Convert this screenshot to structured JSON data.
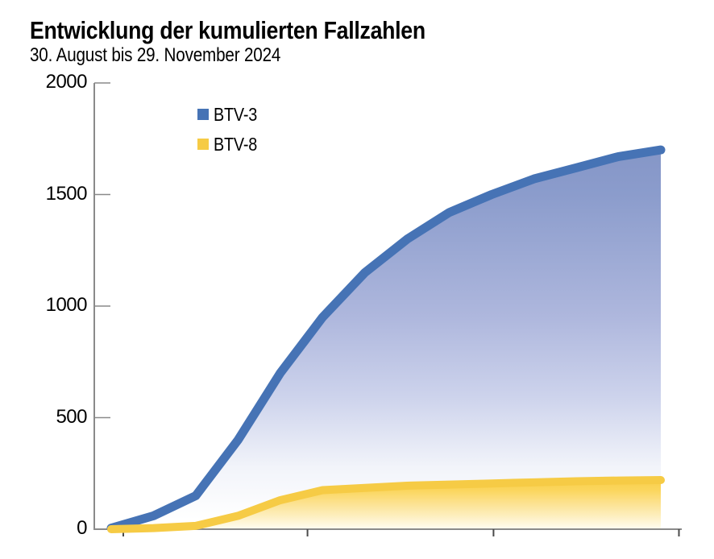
{
  "header": {
    "title": "Entwicklung der kumulierten Fallzahlen",
    "subtitle": "30. August bis 29. November 2024"
  },
  "legend": {
    "items": [
      {
        "label": "BTV-3",
        "color": "#4673b5"
      },
      {
        "label": "BTV-8",
        "color": "#f6cb45"
      }
    ]
  },
  "colors": {
    "btv3_line": "#4673b5",
    "btv3_fill_top": "#8b9ccc",
    "btv8_line": "#f6cb45",
    "btv8_fill_top": "#f8cd47",
    "axis": "#8a8a8a",
    "tick": "#4a4a4a",
    "text": "#000000"
  },
  "chart_data": {
    "type": "area",
    "title": "Entwicklung der kumulierten Fallzahlen",
    "subtitle": "30. August bis 29. November 2024",
    "x_unit": "days since 30 Aug 2024, weekly data points",
    "x_days": [
      0,
      7,
      14,
      21,
      28,
      35,
      42,
      49,
      56,
      63,
      70,
      77,
      84,
      91
    ],
    "series": [
      {
        "name": "BTV-3",
        "color": "#4673b5",
        "values": [
          5,
          60,
          150,
          400,
          700,
          950,
          1150,
          1300,
          1420,
          1500,
          1570,
          1620,
          1670,
          1700
        ]
      },
      {
        "name": "BTV-8",
        "color": "#f6cb45",
        "values": [
          0,
          5,
          15,
          60,
          130,
          175,
          185,
          195,
          200,
          205,
          210,
          215,
          218,
          220
        ]
      }
    ],
    "xlabel": "",
    "ylabel": "",
    "ylim": [
      0,
      2000
    ],
    "y_tick_values": [
      0,
      500,
      1000,
      1500,
      2000
    ],
    "x_tick_days": [
      2,
      32.5,
      63.3,
      94
    ],
    "x_tick_labels_visible": false,
    "grid": false,
    "legend_position": "top-left-inside"
  }
}
